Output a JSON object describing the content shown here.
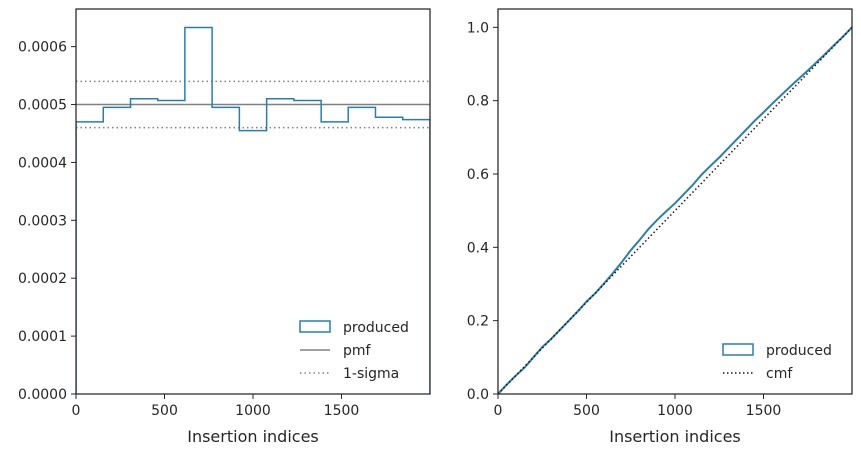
{
  "colors": {
    "produced": "#2a7fa9",
    "pmf": "#808080",
    "sigma": "#808080",
    "cmf": "#1a1a1a",
    "axes": "#262626"
  },
  "chart_data": [
    {
      "type": "step",
      "xlabel": "Insertion indices",
      "ylabel": "",
      "xlim": [
        0,
        2000
      ],
      "ylim": [
        0,
        0.000665
      ],
      "xticks": [
        0,
        500,
        1000,
        1500
      ],
      "xtick_labels": [
        "0",
        "500",
        "1000",
        "1500"
      ],
      "yticks": [
        0,
        0.0001,
        0.0002,
        0.0003,
        0.0004,
        0.0005,
        0.0006
      ],
      "ytick_labels": [
        "0.0000",
        "0.0001",
        "0.0002",
        "0.0003",
        "0.0004",
        "0.0005",
        "0.0006"
      ],
      "series": [
        {
          "name": "produced",
          "kind": "histogram-step",
          "bin_edges": [
            0,
            154,
            308,
            462,
            615,
            769,
            923,
            1077,
            1231,
            1385,
            1538,
            1692,
            1846,
            2000
          ],
          "values": [
            0.00047,
            0.000495,
            0.00051,
            0.000507,
            0.000633,
            0.000495,
            0.000455,
            0.00051,
            0.000507,
            0.00047,
            0.000495,
            0.000478,
            0.000474
          ]
        },
        {
          "name": "pmf",
          "kind": "hline",
          "y": 0.0005
        },
        {
          "name": "1-sigma",
          "kind": "hline-pair",
          "y": [
            0.00046,
            0.00054
          ]
        }
      ],
      "legend": {
        "placement": "lower-right",
        "entries": [
          "produced",
          "pmf",
          "1-sigma"
        ]
      }
    },
    {
      "type": "line",
      "xlabel": "Insertion indices",
      "ylabel": "",
      "xlim": [
        0,
        2000
      ],
      "ylim": [
        0,
        1.05
      ],
      "xticks": [
        0,
        500,
        1000,
        1500
      ],
      "xtick_labels": [
        "0",
        "500",
        "1000",
        "1500"
      ],
      "yticks": [
        0,
        0.2,
        0.4,
        0.6,
        0.8,
        1.0
      ],
      "ytick_labels": [
        "0.0",
        "0.2",
        "0.4",
        "0.6",
        "0.8",
        "1.0"
      ],
      "series": [
        {
          "name": "produced",
          "x": [
            0,
            50,
            100,
            150,
            200,
            250,
            300,
            350,
            400,
            450,
            500,
            550,
            600,
            650,
            700,
            750,
            800,
            850,
            900,
            950,
            1000,
            1050,
            1100,
            1150,
            1200,
            1250,
            1300,
            1350,
            1400,
            1450,
            1500,
            1550,
            1600,
            1650,
            1700,
            1750,
            1800,
            1850,
            1900,
            1950,
            2000
          ],
          "y": [
            0,
            0.026,
            0.05,
            0.072,
            0.1,
            0.128,
            0.15,
            0.175,
            0.2,
            0.225,
            0.252,
            0.275,
            0.302,
            0.33,
            0.36,
            0.392,
            0.42,
            0.45,
            0.475,
            0.498,
            0.52,
            0.545,
            0.57,
            0.598,
            0.622,
            0.645,
            0.67,
            0.695,
            0.72,
            0.745,
            0.768,
            0.792,
            0.815,
            0.838,
            0.86,
            0.882,
            0.905,
            0.928,
            0.952,
            0.975,
            1.0
          ]
        },
        {
          "name": "cmf",
          "x": [
            0,
            2000
          ],
          "y": [
            0,
            1.0
          ]
        }
      ],
      "legend": {
        "placement": "lower-right",
        "entries": [
          "produced",
          "cmf"
        ]
      }
    }
  ]
}
